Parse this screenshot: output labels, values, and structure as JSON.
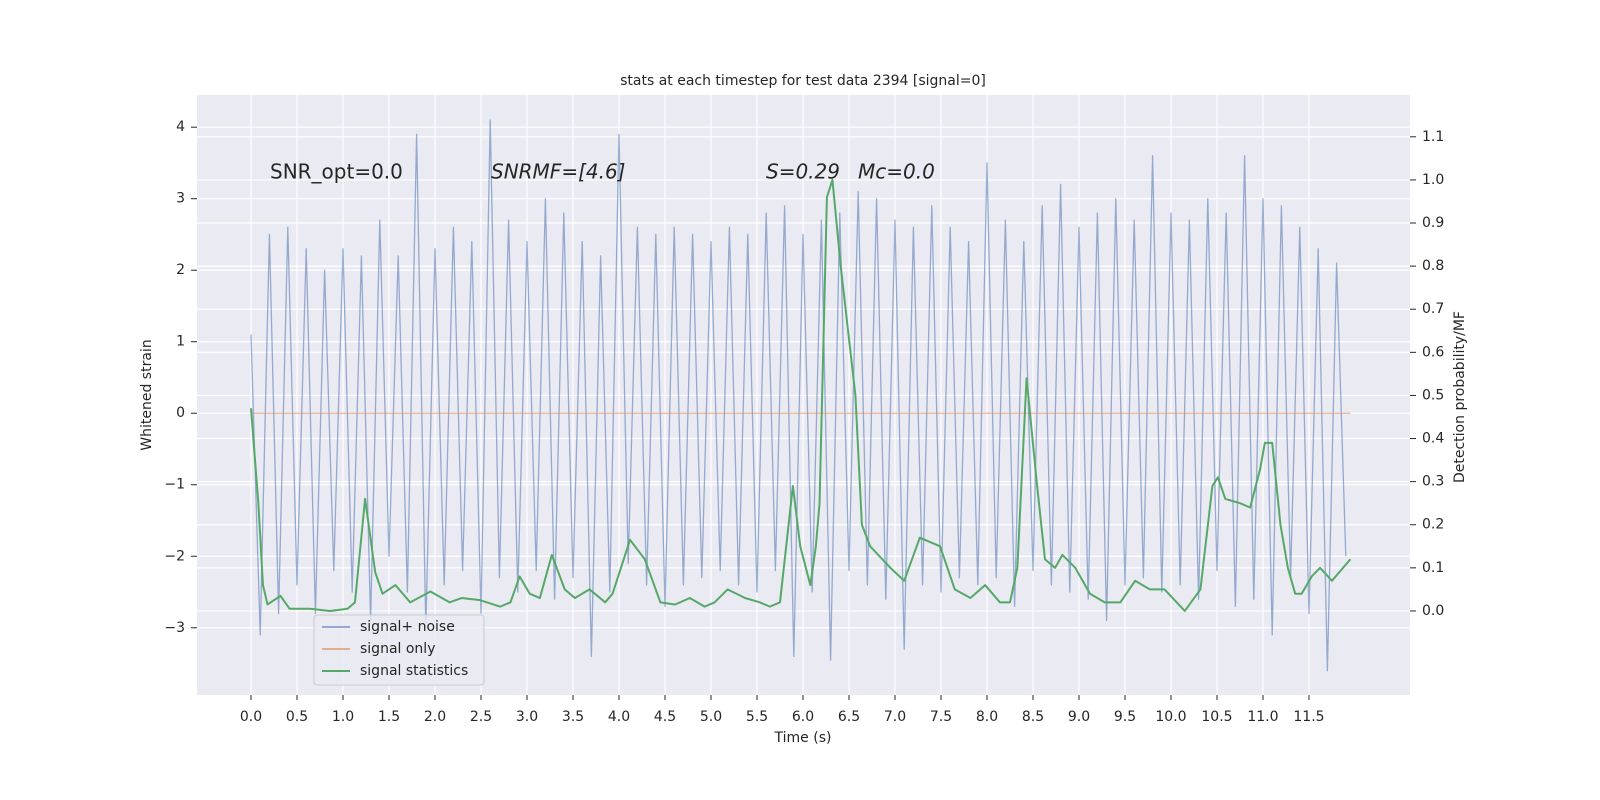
{
  "chart_data": {
    "type": "line",
    "title": "stats at each timestep for test data 2394 [signal=0]",
    "xlabel": "Time (s)",
    "ylabel": "Whitened strain",
    "y2label": "Detection probability/MF",
    "annotations": [
      "SNR_opt=0.0",
      "SNRMF=[4.6]",
      "S=0.29",
      "Mc=0.0"
    ],
    "xlim": [
      -0.587,
      12.598
    ],
    "ylim": [
      -3.94,
      4.45
    ],
    "y2lim": [
      -0.195,
      1.197
    ],
    "xticks": [
      {
        "value": 0,
        "label": "0.0"
      },
      {
        "value": 0.5,
        "label": "0.5"
      },
      {
        "value": 1,
        "label": "1.0"
      },
      {
        "value": 1.5,
        "label": "1.5"
      },
      {
        "value": 2,
        "label": "2.0"
      },
      {
        "value": 2.5,
        "label": "2.5"
      },
      {
        "value": 3,
        "label": "3.0"
      },
      {
        "value": 3.5,
        "label": "3.5"
      },
      {
        "value": 4,
        "label": "4.0"
      },
      {
        "value": 4.5,
        "label": "4.5"
      },
      {
        "value": 5,
        "label": "5.0"
      },
      {
        "value": 5.5,
        "label": "5.5"
      },
      {
        "value": 6,
        "label": "6.0"
      },
      {
        "value": 6.5,
        "label": "6.5"
      },
      {
        "value": 7,
        "label": "7.0"
      },
      {
        "value": 7.5,
        "label": "7.5"
      },
      {
        "value": 8,
        "label": "8.0"
      },
      {
        "value": 8.5,
        "label": "8.5"
      },
      {
        "value": 9,
        "label": "9.0"
      },
      {
        "value": 9.5,
        "label": "9.5"
      },
      {
        "value": 10,
        "label": "10.0"
      },
      {
        "value": 10.5,
        "label": "10.5"
      },
      {
        "value": 11,
        "label": "11.0"
      },
      {
        "value": 11.5,
        "label": "11.5"
      }
    ],
    "yticks": [
      {
        "value": -3,
        "label": "−3"
      },
      {
        "value": -2,
        "label": "−2"
      },
      {
        "value": -1,
        "label": "−1"
      },
      0,
      1,
      2,
      3,
      4
    ],
    "y2ticks": [
      {
        "value": 0,
        "label": "0.0"
      },
      {
        "value": 0.1,
        "label": "0.1"
      },
      {
        "value": 0.2,
        "label": "0.2"
      },
      {
        "value": 0.3,
        "label": "0.3"
      },
      {
        "value": 0.4,
        "label": "0.4"
      },
      {
        "value": 0.5,
        "label": "0.5"
      },
      {
        "value": 0.6,
        "label": "0.6"
      },
      {
        "value": 0.7,
        "label": "0.7"
      },
      {
        "value": 0.8,
        "label": "0.8"
      },
      {
        "value": 0.9,
        "label": "0.9"
      },
      {
        "value": 1,
        "label": "1.0"
      },
      {
        "value": 1.1,
        "label": "1.1"
      }
    ],
    "grid": true,
    "legend": "lower left",
    "series": [
      {
        "name": "signal+ noise",
        "color": "#4c72b0",
        "alpha": 0.55,
        "x": [
          0.0,
          0.1,
          0.2,
          0.3,
          0.4,
          0.5,
          0.6,
          0.7,
          0.8,
          0.9,
          1.0,
          1.1,
          1.2,
          1.3,
          1.4,
          1.5,
          1.6,
          1.7,
          1.8,
          1.9,
          2.0,
          2.1,
          2.2,
          2.3,
          2.4,
          2.5,
          2.6,
          2.7,
          2.8,
          2.9,
          3.0,
          3.1,
          3.2,
          3.3,
          3.4,
          3.5,
          3.6,
          3.7,
          3.8,
          3.9,
          4.0,
          4.1,
          4.2,
          4.3,
          4.4,
          4.5,
          4.6,
          4.7,
          4.8,
          4.9,
          5.0,
          5.1,
          5.2,
          5.3,
          5.4,
          5.5,
          5.6,
          5.7,
          5.8,
          5.9,
          6.0,
          6.1,
          6.2,
          6.3,
          6.4,
          6.5,
          6.6,
          6.7,
          6.8,
          6.9,
          7.0,
          7.1,
          7.2,
          7.3,
          7.4,
          7.5,
          7.6,
          7.7,
          7.8,
          7.9,
          8.0,
          8.1,
          8.2,
          8.3,
          8.4,
          8.5,
          8.6,
          8.7,
          8.8,
          8.9,
          9.0,
          9.1,
          9.2,
          9.3,
          9.4,
          9.5,
          9.6,
          9.7,
          9.8,
          9.9,
          10.0,
          10.1,
          10.2,
          10.3,
          10.4,
          10.5,
          10.6,
          10.7,
          10.8,
          10.9,
          11.0,
          11.1,
          11.2,
          11.3,
          11.4,
          11.5,
          11.6,
          11.7,
          11.8,
          11.9
        ],
        "values": [
          1.1,
          -3.1,
          2.5,
          -2.8,
          2.6,
          -2.4,
          2.3,
          -2.8,
          2.0,
          -2.2,
          2.3,
          -2.5,
          2.2,
          -2.9,
          2.7,
          -2.0,
          2.2,
          -2.5,
          3.9,
          -3.0,
          2.3,
          -2.4,
          2.6,
          -2.2,
          2.4,
          -2.8,
          4.1,
          -2.3,
          2.7,
          -2.5,
          2.4,
          -2.2,
          3.0,
          -2.6,
          2.8,
          -2.3,
          2.4,
          -3.4,
          2.2,
          -2.5,
          3.9,
          -2.1,
          2.6,
          -2.4,
          2.5,
          -2.7,
          2.6,
          -2.4,
          2.5,
          -2.3,
          2.4,
          -2.2,
          2.6,
          -2.4,
          2.5,
          -2.5,
          2.8,
          -2.2,
          2.9,
          -3.4,
          2.5,
          -2.5,
          2.7,
          -3.45,
          2.8,
          -2.2,
          3.1,
          -2.4,
          3.0,
          -2.6,
          2.7,
          -3.3,
          2.6,
          -2.4,
          2.9,
          -2.5,
          2.6,
          -2.3,
          2.4,
          -2.4,
          3.5,
          -2.3,
          2.7,
          -2.7,
          2.4,
          -2.2,
          2.9,
          -2.4,
          3.2,
          -2.5,
          2.6,
          -2.6,
          2.8,
          -2.9,
          3.0,
          -2.4,
          2.7,
          -2.3,
          3.6,
          -2.5,
          2.8,
          -2.4,
          2.7,
          -2.6,
          3.0,
          -2.2,
          2.8,
          -2.7,
          3.6,
          -2.6,
          3.0,
          -3.1,
          2.9,
          -2.3,
          2.6,
          -2.8,
          2.3,
          -3.6,
          2.1,
          -2.0
        ]
      },
      {
        "name": "signal only",
        "color": "#dd8452",
        "alpha": 0.6,
        "x": [
          0.0,
          11.95
        ],
        "values": [
          0,
          0
        ]
      },
      {
        "name": "signal statistics",
        "color": "#55a868",
        "alpha": 1,
        "axis": "y2",
        "x": [
          0,
          0.08,
          0.13,
          0.18,
          0.32,
          0.42,
          0.64,
          0.86,
          1.05,
          1.13,
          1.24,
          1.35,
          1.43,
          1.57,
          1.73,
          1.95,
          2.16,
          2.29,
          2.49,
          2.71,
          2.82,
          2.92,
          3.03,
          3.14,
          3.27,
          3.41,
          3.52,
          3.68,
          3.85,
          3.93,
          4.12,
          4.28,
          4.45,
          4.61,
          4.77,
          4.93,
          5.04,
          5.18,
          5.37,
          5.53,
          5.64,
          5.75,
          5.89,
          5.97,
          6.08,
          6.14,
          6.18,
          6.26,
          6.32,
          6.41,
          6.57,
          6.64,
          6.73,
          6.95,
          7.1,
          7.27,
          7.49,
          7.65,
          7.82,
          7.98,
          8.14,
          8.25,
          8.33,
          8.43,
          8.54,
          8.63,
          8.74,
          8.82,
          8.96,
          9.12,
          9.28,
          9.45,
          9.61,
          9.77,
          9.93,
          10.15,
          10.32,
          10.45,
          10.51,
          10.59,
          10.75,
          10.86,
          10.97,
          11.02,
          11.1,
          11.19,
          11.27,
          11.35,
          11.42,
          11.53,
          11.62,
          11.75,
          11.95
        ],
        "values": [
          0.47,
          0.25,
          0.06,
          0.015,
          0.035,
          0.005,
          0.005,
          0,
          0.005,
          0.02,
          0.26,
          0.09,
          0.04,
          0.06,
          0.02,
          0.045,
          0.02,
          0.03,
          0.025,
          0.01,
          0.02,
          0.08,
          0.04,
          0.03,
          0.13,
          0.05,
          0.03,
          0.05,
          0.02,
          0.04,
          0.165,
          0.12,
          0.02,
          0.015,
          0.03,
          0.01,
          0.02,
          0.05,
          0.03,
          0.02,
          0.01,
          0.02,
          0.29,
          0.15,
          0.06,
          0.15,
          0.25,
          0.96,
          1.0,
          0.8,
          0.5,
          0.2,
          0.15,
          0.1,
          0.07,
          0.17,
          0.15,
          0.05,
          0.03,
          0.06,
          0.02,
          0.02,
          0.1,
          0.54,
          0.3,
          0.12,
          0.1,
          0.13,
          0.1,
          0.04,
          0.02,
          0.02,
          0.07,
          0.05,
          0.05,
          0,
          0.05,
          0.29,
          0.31,
          0.26,
          0.25,
          0.24,
          0.33,
          0.39,
          0.39,
          0.2,
          0.1,
          0.04,
          0.04,
          0.08,
          0.1,
          0.07,
          0.12
        ]
      }
    ]
  }
}
